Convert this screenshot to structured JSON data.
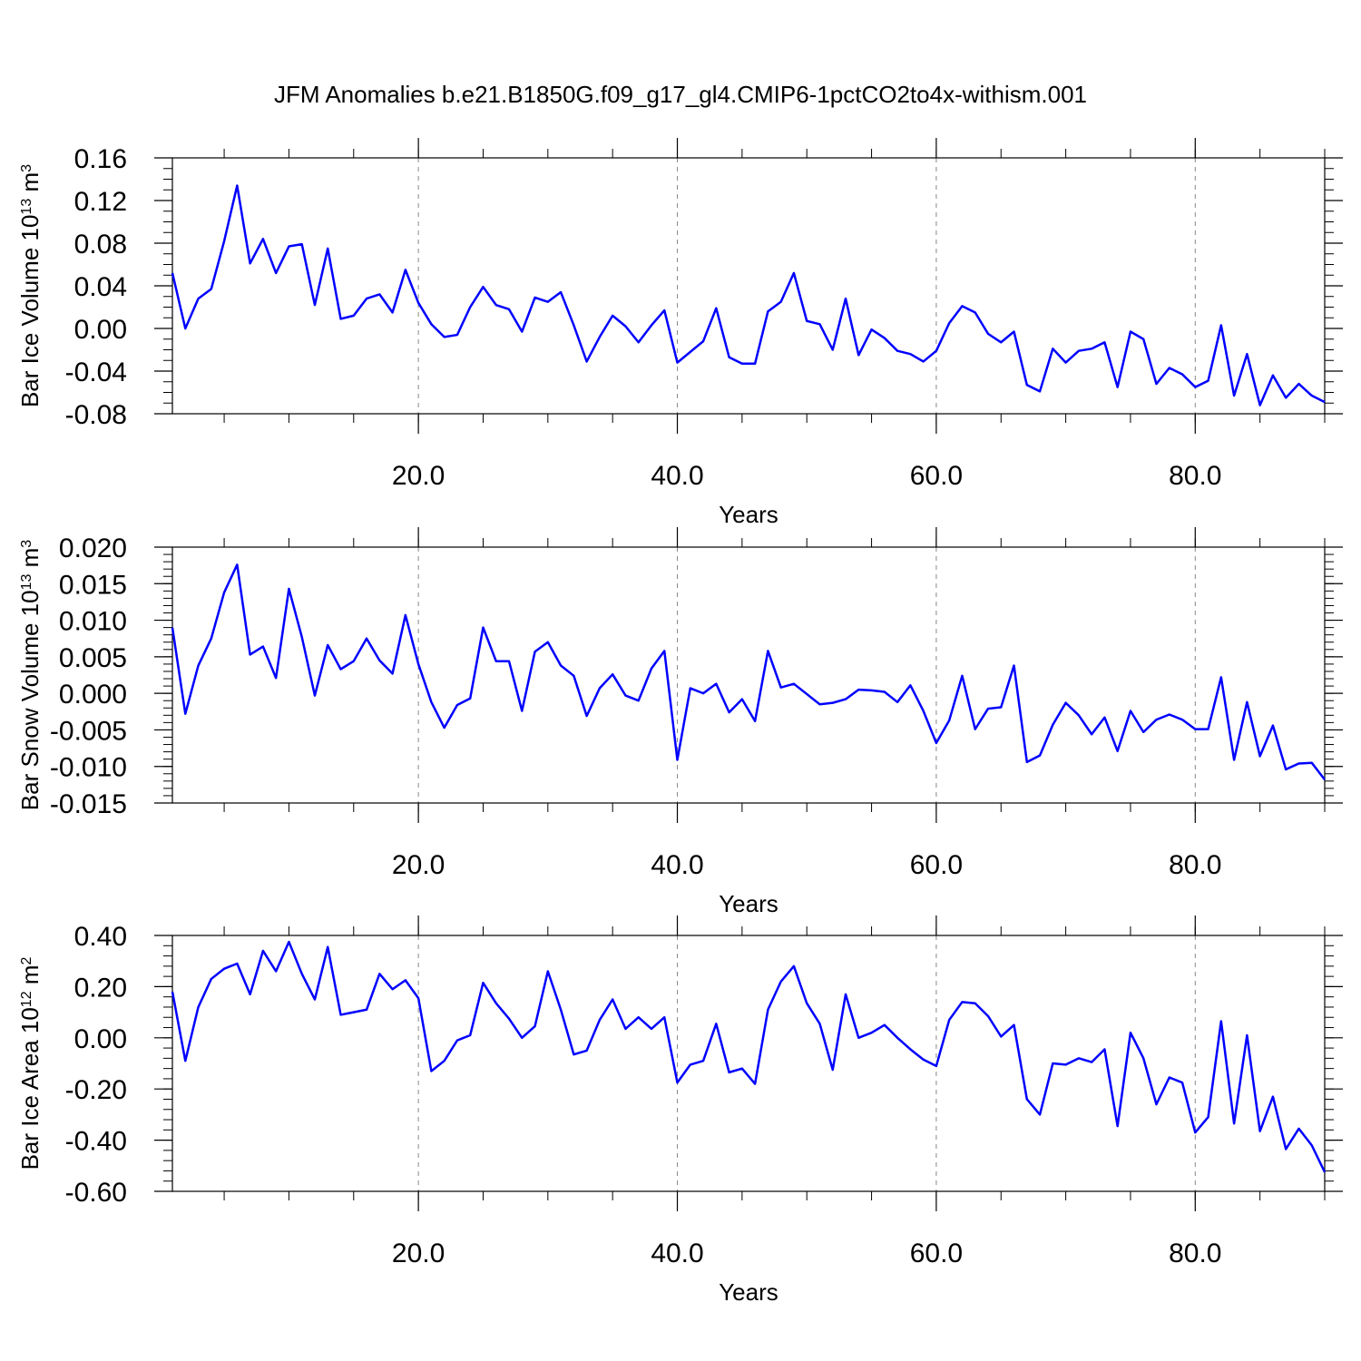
{
  "chart_data": [
    {
      "type": "line",
      "title": "JFM Anomalies b.e21.B1850G.f09_g17_gl4.CMIP6-1pctCO2to4x-withism.001",
      "xlabel": "Years",
      "ylabel": [
        {
          "text": "Bar Ice Volume 10"
        },
        {
          "text": "13",
          "sup": true
        },
        {
          "text": " m"
        },
        {
          "text": "3",
          "sup": true
        }
      ],
      "color": "#0000ff",
      "x": [
        1,
        2,
        3,
        4,
        5,
        6,
        7,
        8,
        9,
        10,
        11,
        12,
        13,
        14,
        15,
        16,
        17,
        18,
        19,
        20,
        21,
        22,
        23,
        24,
        25,
        26,
        27,
        28,
        29,
        30,
        31,
        32,
        33,
        34,
        35,
        36,
        37,
        38,
        39,
        40,
        41,
        42,
        43,
        44,
        45,
        46,
        47,
        48,
        49,
        50,
        51,
        52,
        53,
        54,
        55,
        56,
        57,
        58,
        59,
        60,
        61,
        62,
        63,
        64,
        65,
        66,
        67,
        68,
        69,
        70,
        71,
        72,
        73,
        74,
        75,
        76,
        77,
        78,
        79,
        80,
        81,
        82,
        83,
        84,
        85,
        86,
        87,
        88,
        89,
        90
      ],
      "values": [
        0.052,
        0.0,
        0.028,
        0.037,
        0.082,
        0.134,
        0.061,
        0.084,
        0.052,
        0.077,
        0.079,
        0.022,
        0.075,
        0.009,
        0.012,
        0.028,
        0.032,
        0.015,
        0.055,
        0.024,
        0.004,
        -0.008,
        -0.006,
        0.02,
        0.039,
        0.022,
        0.018,
        -0.003,
        0.029,
        0.025,
        0.034,
        0.003,
        -0.031,
        -0.008,
        0.012,
        0.002,
        -0.013,
        0.003,
        0.017,
        -0.032,
        -0.022,
        -0.012,
        0.019,
        -0.027,
        -0.033,
        -0.033,
        0.016,
        0.025,
        0.052,
        0.007,
        0.004,
        -0.02,
        0.028,
        -0.025,
        -0.001,
        -0.009,
        -0.021,
        -0.024,
        -0.031,
        -0.021,
        0.005,
        0.021,
        0.015,
        -0.005,
        -0.013,
        -0.003,
        -0.053,
        -0.059,
        -0.019,
        -0.032,
        -0.021,
        -0.019,
        -0.013,
        -0.055,
        -0.003,
        -0.01,
        -0.052,
        -0.037,
        -0.043,
        -0.055,
        -0.049,
        0.003,
        -0.063,
        -0.024,
        -0.072,
        -0.044,
        -0.065,
        -0.052,
        -0.063,
        -0.069
      ],
      "xlim": [
        1,
        90
      ],
      "xticks": [
        {
          "value": 20,
          "label": "20.0"
        },
        {
          "value": 40,
          "label": "40.0"
        },
        {
          "value": 60,
          "label": "60.0"
        },
        {
          "value": 80,
          "label": "80.0"
        }
      ],
      "xminor_step": 5,
      "ylim": [
        -0.08,
        0.16
      ],
      "yticks": [
        -0.08,
        -0.04,
        {
          "value": 0,
          "label": "0.00"
        },
        0.04,
        0.08,
        0.12,
        0.16
      ],
      "yminor_step": 0.01,
      "grid_x": true
    },
    {
      "type": "line",
      "xlabel": "Years",
      "ylabel": [
        {
          "text": "Bar Snow Volume 10"
        },
        {
          "text": "13",
          "sup": true
        },
        {
          "text": " m"
        },
        {
          "text": "3",
          "sup": true
        }
      ],
      "color": "#0000ff",
      "x": [
        1,
        2,
        3,
        4,
        5,
        6,
        7,
        8,
        9,
        10,
        11,
        12,
        13,
        14,
        15,
        16,
        17,
        18,
        19,
        20,
        21,
        22,
        23,
        24,
        25,
        26,
        27,
        28,
        29,
        30,
        31,
        32,
        33,
        34,
        35,
        36,
        37,
        38,
        39,
        40,
        41,
        42,
        43,
        44,
        45,
        46,
        47,
        48,
        49,
        50,
        51,
        52,
        53,
        54,
        55,
        56,
        57,
        58,
        59,
        60,
        61,
        62,
        63,
        64,
        65,
        66,
        67,
        68,
        69,
        70,
        71,
        72,
        73,
        74,
        75,
        76,
        77,
        78,
        79,
        80,
        81,
        82,
        83,
        84,
        85,
        86,
        87,
        88,
        89,
        90
      ],
      "values": [
        0.009,
        -0.0028,
        0.0038,
        0.0075,
        0.0138,
        0.0176,
        0.0053,
        0.0064,
        0.0021,
        0.0143,
        0.0077,
        -0.0003,
        0.0066,
        0.0033,
        0.0044,
        0.0075,
        0.0045,
        0.0027,
        0.0107,
        0.004,
        -0.0012,
        -0.0047,
        -0.0016,
        -0.0007,
        0.009,
        0.0044,
        0.0044,
        -0.0024,
        0.0057,
        0.007,
        0.0038,
        0.0024,
        -0.0031,
        0.0007,
        0.0026,
        -0.0003,
        -0.001,
        0.0034,
        0.0058,
        -0.0091,
        0.0007,
        0.0,
        0.0013,
        -0.0026,
        -0.0008,
        -0.0038,
        0.0058,
        0.0008,
        0.0013,
        -0.0001,
        -0.0015,
        -0.0013,
        -0.0008,
        0.0005,
        0.0004,
        0.0002,
        -0.0012,
        0.0011,
        -0.0024,
        -0.0068,
        -0.0037,
        0.0024,
        -0.0049,
        -0.0021,
        -0.0019,
        0.0038,
        -0.0094,
        -0.0085,
        -0.0043,
        -0.0013,
        -0.003,
        -0.0056,
        -0.0033,
        -0.0079,
        -0.0024,
        -0.0053,
        -0.0036,
        -0.0029,
        -0.0036,
        -0.0049,
        -0.0049,
        0.0022,
        -0.0091,
        -0.0012,
        -0.0086,
        -0.0044,
        -0.0104,
        -0.0096,
        -0.0095,
        -0.0118
      ],
      "xlim": [
        1,
        90
      ],
      "xticks": [
        {
          "value": 20,
          "label": "20.0"
        },
        {
          "value": 40,
          "label": "40.0"
        },
        {
          "value": 60,
          "label": "60.0"
        },
        {
          "value": 80,
          "label": "80.0"
        }
      ],
      "xminor_step": 5,
      "ylim": [
        -0.015,
        0.02
      ],
      "yticks": [
        -0.015,
        {
          "value": -0.01,
          "label": "-0.010"
        },
        -0.005,
        {
          "value": 0,
          "label": "0.000"
        },
        0.005,
        {
          "value": 0.01,
          "label": "0.010"
        },
        0.015,
        {
          "value": 0.02,
          "label": "0.020"
        }
      ],
      "yminor_step": 0.001,
      "grid_x": true
    },
    {
      "type": "line",
      "xlabel": "Years",
      "ylabel": [
        {
          "text": "Bar Ice Area 10"
        },
        {
          "text": "12",
          "sup": true
        },
        {
          "text": " m"
        },
        {
          "text": "2",
          "sup": true
        }
      ],
      "color": "#0000ff",
      "x": [
        1,
        2,
        3,
        4,
        5,
        6,
        7,
        8,
        9,
        10,
        11,
        12,
        13,
        14,
        15,
        16,
        17,
        18,
        19,
        20,
        21,
        22,
        23,
        24,
        25,
        26,
        27,
        28,
        29,
        30,
        31,
        32,
        33,
        34,
        35,
        36,
        37,
        38,
        39,
        40,
        41,
        42,
        43,
        44,
        45,
        46,
        47,
        48,
        49,
        50,
        51,
        52,
        53,
        54,
        55,
        56,
        57,
        58,
        59,
        60,
        61,
        62,
        63,
        64,
        65,
        66,
        67,
        68,
        69,
        70,
        71,
        72,
        73,
        74,
        75,
        76,
        77,
        78,
        79,
        80,
        81,
        82,
        83,
        84,
        85,
        86,
        87,
        88,
        89,
        90
      ],
      "values": [
        0.18,
        -0.09,
        0.12,
        0.23,
        0.27,
        0.29,
        0.17,
        0.34,
        0.26,
        0.375,
        0.25,
        0.15,
        0.355,
        0.09,
        0.1,
        0.11,
        0.25,
        0.19,
        0.225,
        0.155,
        -0.13,
        -0.09,
        -0.01,
        0.01,
        0.215,
        0.135,
        0.075,
        0.0,
        0.045,
        0.26,
        0.11,
        -0.065,
        -0.05,
        0.07,
        0.15,
        0.035,
        0.08,
        0.035,
        0.08,
        -0.175,
        -0.105,
        -0.09,
        0.055,
        -0.135,
        -0.12,
        -0.18,
        0.11,
        0.22,
        0.28,
        0.135,
        0.055,
        -0.125,
        0.17,
        0.0,
        0.02,
        0.05,
        0.0,
        -0.045,
        -0.085,
        -0.11,
        0.07,
        0.14,
        0.135,
        0.085,
        0.005,
        0.05,
        -0.24,
        -0.3,
        -0.1,
        -0.105,
        -0.08,
        -0.095,
        -0.045,
        -0.345,
        0.02,
        -0.08,
        -0.26,
        -0.155,
        -0.175,
        -0.37,
        -0.31,
        0.065,
        -0.335,
        0.01,
        -0.365,
        -0.23,
        -0.435,
        -0.355,
        -0.42,
        -0.525
      ],
      "xlim": [
        1,
        90
      ],
      "xticks": [
        {
          "value": 20,
          "label": "20.0"
        },
        {
          "value": 40,
          "label": "40.0"
        },
        {
          "value": 60,
          "label": "60.0"
        },
        {
          "value": 80,
          "label": "80.0"
        }
      ],
      "xminor_step": 5,
      "ylim": [
        -0.6,
        0.4
      ],
      "yticks": [
        {
          "value": -0.6,
          "label": "-0.60"
        },
        {
          "value": -0.4,
          "label": "-0.40"
        },
        {
          "value": -0.2,
          "label": "-0.20"
        },
        {
          "value": 0,
          "label": "0.00"
        },
        {
          "value": 0.2,
          "label": "0.20"
        },
        {
          "value": 0.4,
          "label": "0.40"
        }
      ],
      "yminor_step": 0.04,
      "grid_x": true
    }
  ]
}
